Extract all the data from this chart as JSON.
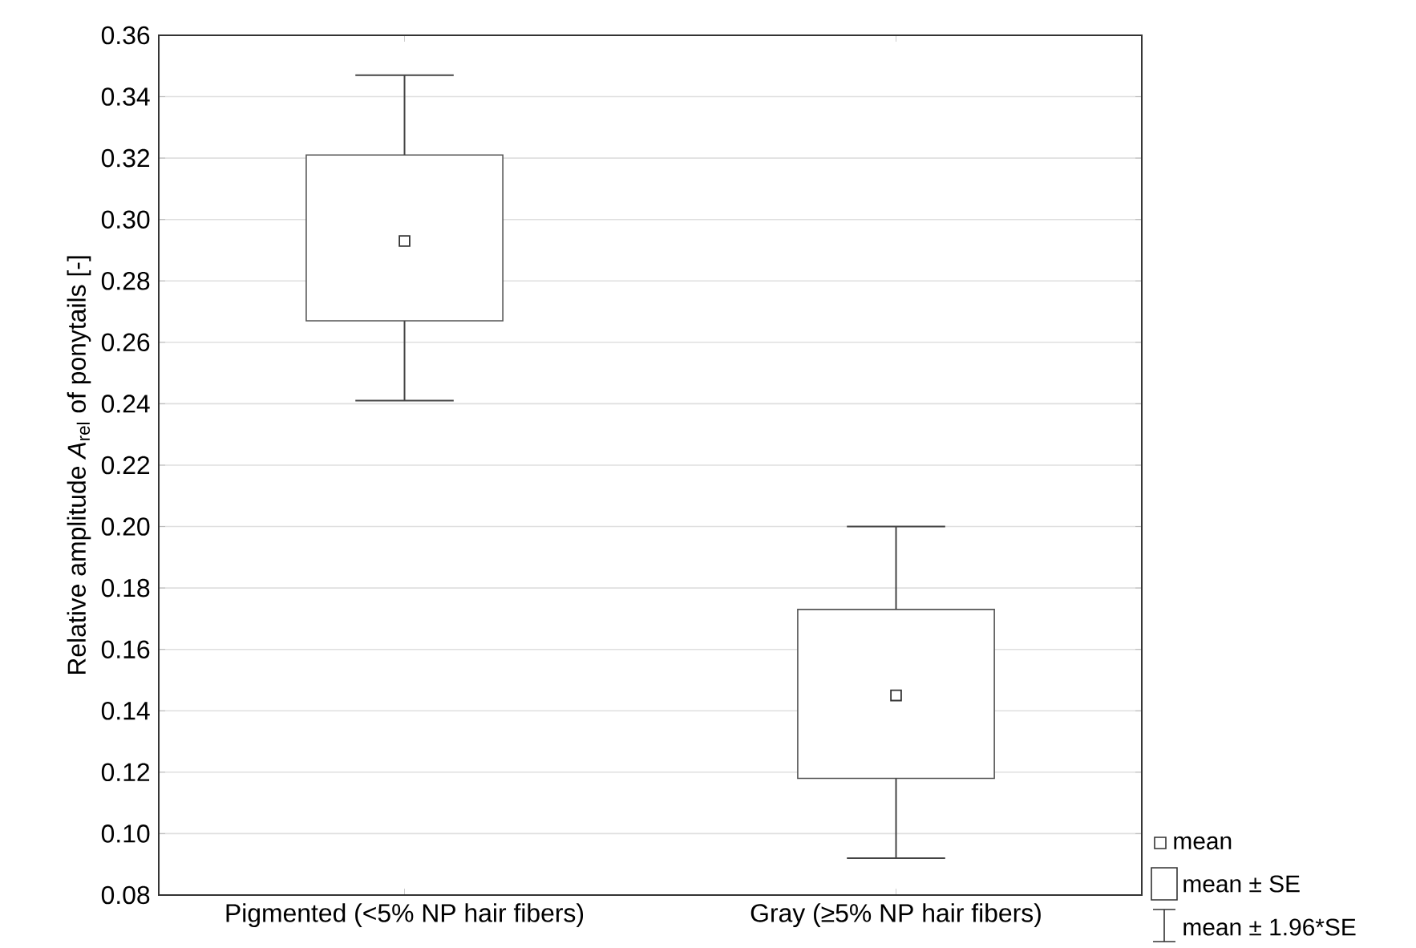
{
  "chart_data": {
    "type": "box",
    "ylabel": "Relative amplitude *A*$_{rel}$ of ponytails [-]",
    "categories": [
      "Pigmented (<5% NP hair fibers)",
      "Gray (≥5% NP hair fibers)"
    ],
    "boxes": [
      {
        "low": 0.241,
        "q1": 0.267,
        "q3": 0.321,
        "high": 0.347,
        "mean": 0.293
      },
      {
        "low": 0.092,
        "q1": 0.118,
        "q3": 0.173,
        "high": 0.2,
        "mean": 0.145
      }
    ],
    "color": "#555555",
    "ylim": [
      0.08,
      0.36
    ],
    "yticks": [
      {
        "value": 0.08,
        "label": "0.08"
      },
      {
        "value": 0.1,
        "label": "0.10"
      },
      {
        "value": 0.12,
        "label": "0.12"
      },
      {
        "value": 0.14,
        "label": "0.14"
      },
      {
        "value": 0.16,
        "label": "0.16"
      },
      {
        "value": 0.18,
        "label": "0.18"
      },
      {
        "value": 0.2,
        "label": "0.20"
      },
      {
        "value": 0.22,
        "label": "0.22"
      },
      {
        "value": 0.24,
        "label": "0.24"
      },
      {
        "value": 0.26,
        "label": "0.26"
      },
      {
        "value": 0.28,
        "label": "0.28"
      },
      {
        "value": 0.3,
        "label": "0.30"
      },
      {
        "value": 0.32,
        "label": "0.32"
      },
      {
        "value": 0.34,
        "label": "0.34"
      },
      {
        "value": 0.36,
        "label": "0.36"
      }
    ],
    "grid": "y",
    "annotations": [
      "mean",
      "mean ± SE",
      "mean ± 1.96*SE"
    ]
  }
}
